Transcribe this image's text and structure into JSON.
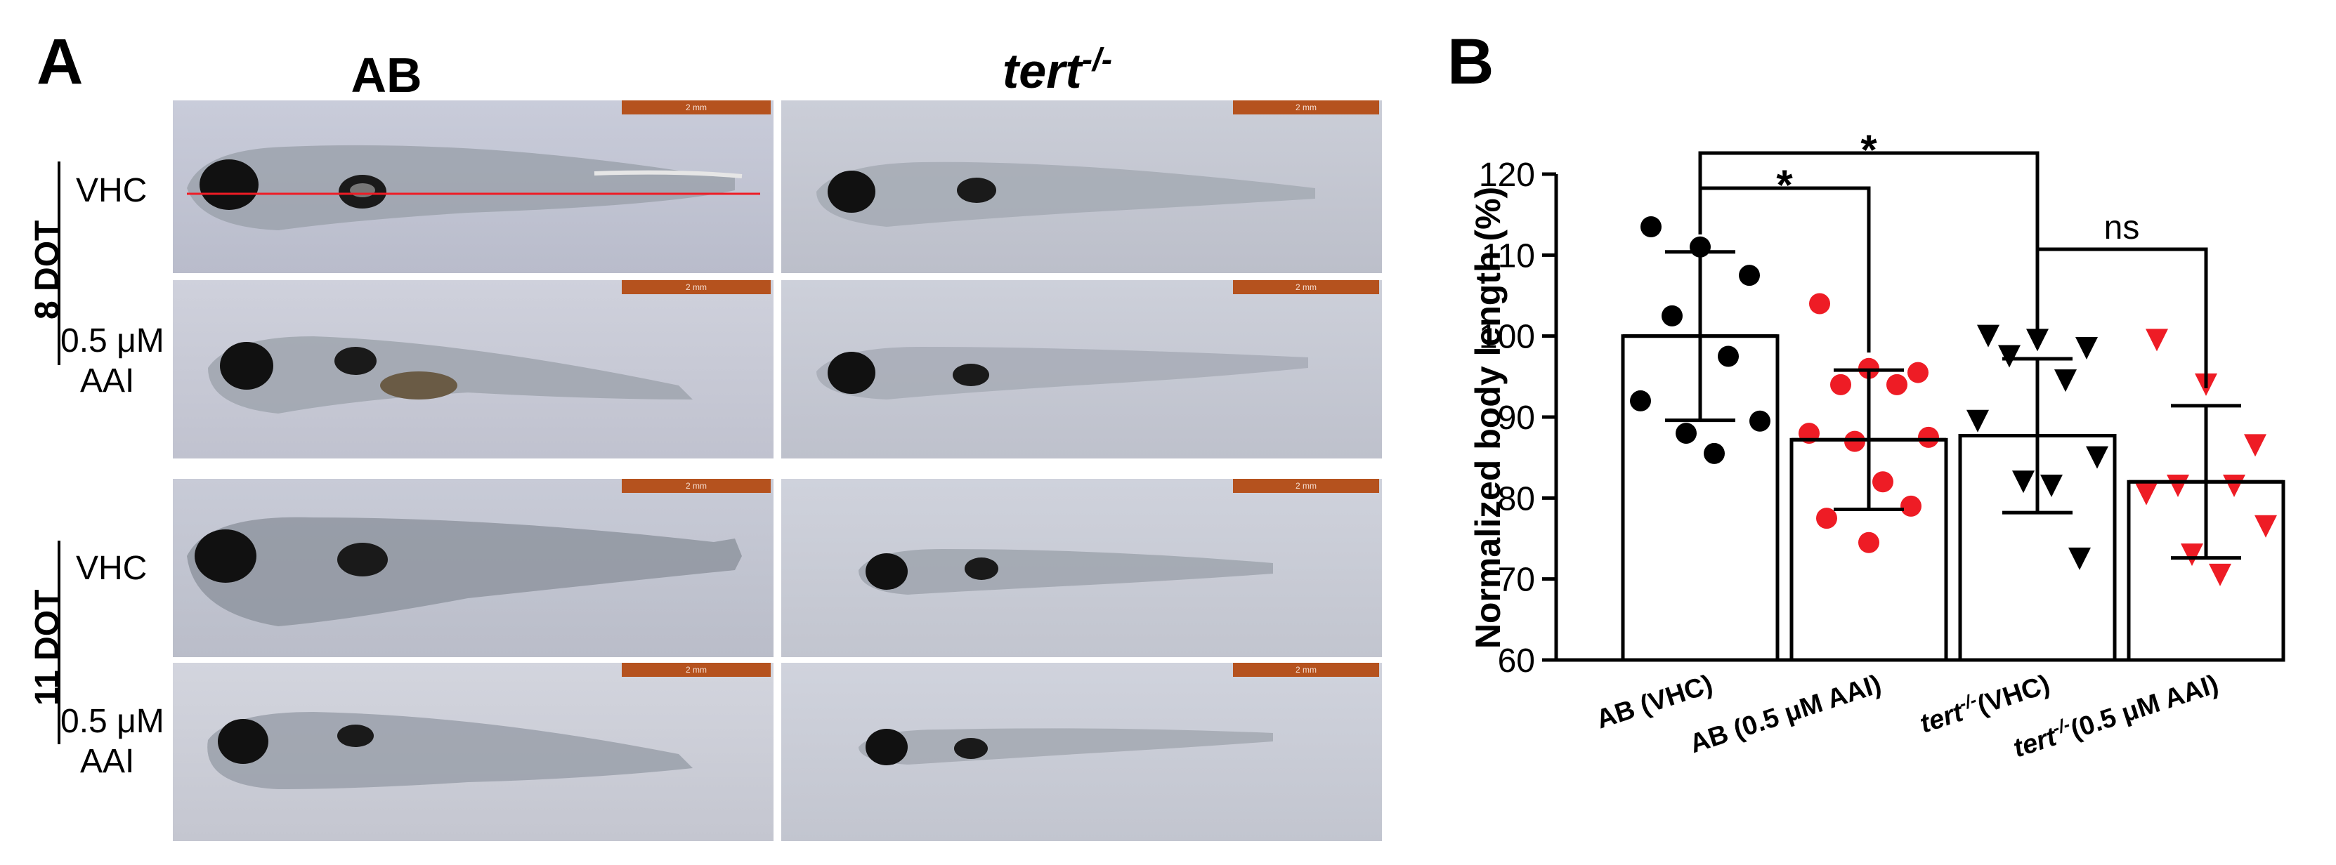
{
  "panel_a": {
    "letter": "A",
    "col_ab": "AB",
    "col_tert_base": "tert",
    "col_tert_sup": "-/-",
    "group_8dot": "8 DOT",
    "group_11dot": "11 DOT",
    "row_vhc": "VHC",
    "row_aai_line1": "0.5 μM",
    "row_aai_line2": "AAI",
    "scale_bar_label": "2 mm"
  },
  "panel_b": {
    "letter": "B"
  },
  "chart_data": {
    "type": "bar",
    "ylabel": "Normalized body length (%)",
    "ylim": [
      60,
      120
    ],
    "yticks": [
      60,
      70,
      80,
      90,
      100,
      110,
      120
    ],
    "categories": [
      {
        "label": "AB (VHC)",
        "italic_prefix": "",
        "sup": "",
        "suffix": ""
      },
      {
        "label": "AB (0.5 μM AAI)",
        "italic_prefix": "",
        "sup": "",
        "suffix": ""
      },
      {
        "label": "tert-/-(VHC)",
        "italic_prefix": "tert",
        "sup": "-/-",
        "suffix": "(VHC)"
      },
      {
        "label": "tert-/-(0.5 μM AAI)",
        "italic_prefix": "tert",
        "sup": "-/-",
        "suffix": "(0.5 μM AAI)"
      }
    ],
    "means": [
      100,
      87.2,
      87.7,
      82
    ],
    "sd": [
      10.4,
      8.6,
      9.5,
      9.4
    ],
    "marker": [
      "circle",
      "circle",
      "triangle-down",
      "triangle-down"
    ],
    "colors": [
      "#000000",
      "#ee1c25",
      "#000000",
      "#ee1c25"
    ],
    "points": [
      [
        113.5,
        111,
        107.5,
        102.5,
        97.5,
        92,
        89.5,
        88,
        85.5
      ],
      [
        104,
        96,
        95.5,
        94,
        94,
        88,
        87.5,
        87,
        82,
        79,
        77.5,
        74.5
      ],
      [
        100,
        99.5,
        98.5,
        97.5,
        94.5,
        89.5,
        85,
        82,
        81.5,
        72.5
      ],
      [
        99.5,
        94,
        86.5,
        81.5,
        81.5,
        80.5,
        76.5,
        73,
        70.5
      ]
    ],
    "significance": [
      {
        "from": 0,
        "to": 1,
        "label": "*"
      },
      {
        "from": 0,
        "to": 2,
        "label": "*"
      },
      {
        "from": 2,
        "to": 3,
        "label": "ns"
      }
    ]
  }
}
